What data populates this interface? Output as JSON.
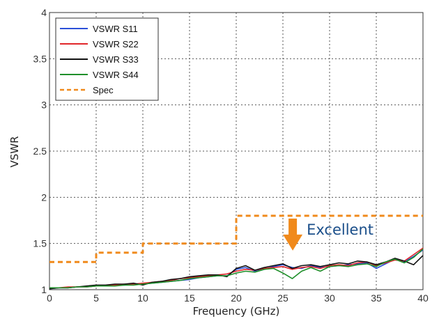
{
  "chart_data": {
    "type": "line",
    "xlabel": "Frequency (GHz)",
    "ylabel": "VSWR",
    "xlim": [
      0,
      40
    ],
    "ylim": [
      1,
      4
    ],
    "xticks": [
      "0",
      "5",
      "10",
      "15",
      "20",
      "25",
      "30",
      "35",
      "40"
    ],
    "yticks": [
      "1",
      "1.5",
      "2",
      "2.5",
      "3",
      "3.5",
      "4"
    ],
    "grid": true,
    "legend_position": "top-left",
    "series": [
      {
        "name": "VSWR S11",
        "color": "#2b4fd8",
        "x": [
          0,
          1,
          2,
          3,
          4,
          5,
          6,
          7,
          8,
          9,
          10,
          11,
          12,
          13,
          14,
          15,
          16,
          17,
          18,
          19,
          20,
          21,
          22,
          23,
          24,
          25,
          26,
          27,
          28,
          29,
          30,
          31,
          32,
          33,
          34,
          35,
          36,
          37,
          38,
          39,
          40
        ],
        "y": [
          1.01,
          1.02,
          1.02,
          1.03,
          1.03,
          1.04,
          1.04,
          1.05,
          1.05,
          1.06,
          1.06,
          1.07,
          1.08,
          1.09,
          1.1,
          1.11,
          1.13,
          1.14,
          1.15,
          1.15,
          1.22,
          1.24,
          1.2,
          1.22,
          1.25,
          1.27,
          1.24,
          1.23,
          1.26,
          1.24,
          1.25,
          1.26,
          1.27,
          1.28,
          1.29,
          1.23,
          1.28,
          1.33,
          1.3,
          1.36,
          1.43
        ]
      },
      {
        "name": "VSWR S22",
        "color": "#e0262a",
        "x": [
          0,
          1,
          2,
          3,
          4,
          5,
          6,
          7,
          8,
          9,
          10,
          11,
          12,
          13,
          14,
          15,
          16,
          17,
          18,
          19,
          20,
          21,
          22,
          23,
          24,
          25,
          26,
          27,
          28,
          29,
          30,
          31,
          32,
          33,
          34,
          35,
          36,
          37,
          38,
          39,
          40
        ],
        "y": [
          1.02,
          1.02,
          1.03,
          1.03,
          1.03,
          1.04,
          1.04,
          1.05,
          1.06,
          1.06,
          1.07,
          1.08,
          1.09,
          1.1,
          1.12,
          1.13,
          1.14,
          1.15,
          1.16,
          1.17,
          1.2,
          1.22,
          1.21,
          1.23,
          1.24,
          1.25,
          1.22,
          1.24,
          1.25,
          1.23,
          1.26,
          1.27,
          1.26,
          1.29,
          1.3,
          1.26,
          1.29,
          1.32,
          1.31,
          1.38,
          1.45
        ]
      },
      {
        "name": "VSWR S33",
        "color": "#111111",
        "x": [
          0,
          1,
          2,
          3,
          4,
          5,
          6,
          7,
          8,
          9,
          10,
          11,
          12,
          13,
          14,
          15,
          16,
          17,
          18,
          19,
          20,
          21,
          22,
          23,
          24,
          25,
          26,
          27,
          28,
          29,
          30,
          31,
          32,
          33,
          34,
          35,
          36,
          37,
          38,
          39,
          40
        ],
        "y": [
          1.01,
          1.02,
          1.02,
          1.03,
          1.04,
          1.05,
          1.05,
          1.06,
          1.06,
          1.07,
          1.05,
          1.08,
          1.09,
          1.11,
          1.12,
          1.14,
          1.15,
          1.16,
          1.16,
          1.14,
          1.23,
          1.26,
          1.21,
          1.24,
          1.26,
          1.28,
          1.23,
          1.26,
          1.27,
          1.25,
          1.27,
          1.29,
          1.28,
          1.31,
          1.3,
          1.27,
          1.3,
          1.34,
          1.31,
          1.27,
          1.37
        ]
      },
      {
        "name": "VSWR S44",
        "color": "#1f8f2a",
        "x": [
          0,
          1,
          2,
          3,
          4,
          5,
          6,
          7,
          8,
          9,
          10,
          11,
          12,
          13,
          14,
          15,
          16,
          17,
          18,
          19,
          20,
          21,
          22,
          23,
          24,
          25,
          26,
          27,
          28,
          29,
          30,
          31,
          32,
          33,
          34,
          35,
          36,
          37,
          38,
          39,
          40
        ],
        "y": [
          1.02,
          1.02,
          1.02,
          1.03,
          1.03,
          1.04,
          1.04,
          1.04,
          1.05,
          1.05,
          1.06,
          1.07,
          1.08,
          1.09,
          1.1,
          1.12,
          1.13,
          1.14,
          1.15,
          1.15,
          1.18,
          1.2,
          1.19,
          1.22,
          1.23,
          1.18,
          1.12,
          1.2,
          1.24,
          1.2,
          1.25,
          1.26,
          1.25,
          1.27,
          1.28,
          1.25,
          1.3,
          1.33,
          1.29,
          1.35,
          1.44
        ]
      },
      {
        "name": "Spec",
        "color": "#f08a1c",
        "dashed": true,
        "x": [
          0,
          5,
          5,
          10,
          10,
          20,
          20,
          40
        ],
        "y": [
          1.3,
          1.3,
          1.4,
          1.4,
          1.5,
          1.5,
          1.8,
          1.8
        ]
      }
    ],
    "annotations": [
      {
        "text": "Excellent",
        "x": 26.5,
        "y": 1.7,
        "color": "#1b4f8a",
        "arrow_color": "#f08a1c",
        "arrow_direction": "down"
      }
    ]
  }
}
